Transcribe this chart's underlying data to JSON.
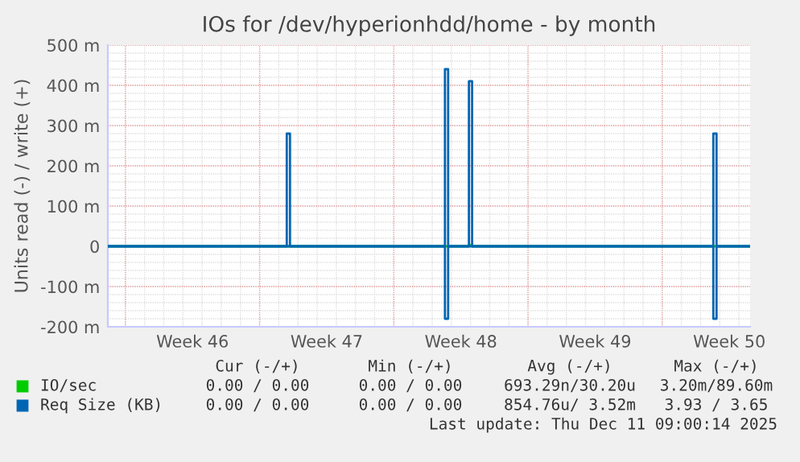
{
  "chart_data": {
    "type": "line",
    "title": "IOs for /dev/hyperionhdd/home - by month",
    "ylabel": "Units read (-) / write (+)",
    "xlim": [
      "2025-11-09T02:00",
      "2025-12-12T14:00"
    ],
    "xticks": [
      {
        "value": "2025-11-10T00:00",
        "label": null
      },
      {
        "value": "2025-11-13T12:00",
        "label": "Week 46"
      },
      {
        "value": "2025-11-17T00:00",
        "label": null
      },
      {
        "value": "2025-11-20T12:00",
        "label": "Week 47"
      },
      {
        "value": "2025-11-24T00:00",
        "label": null
      },
      {
        "value": "2025-11-27T12:00",
        "label": "Week 48"
      },
      {
        "value": "2025-12-01T00:00",
        "label": null
      },
      {
        "value": "2025-12-04T12:00",
        "label": "Week 49"
      },
      {
        "value": "2025-12-08T00:00",
        "label": null
      },
      {
        "value": "2025-12-11T12:00",
        "label": "Week 50"
      }
    ],
    "ylim": [
      -200,
      500
    ],
    "yticks": [
      {
        "value": -200,
        "label": "-200 m"
      },
      {
        "value": -100,
        "label": "-100 m"
      },
      0,
      {
        "value": 100,
        "label": "100 m"
      },
      {
        "value": 200,
        "label": "200 m"
      },
      {
        "value": 300,
        "label": "300 m"
      },
      {
        "value": 400,
        "label": "400 m"
      },
      {
        "value": 500,
        "label": "500 m"
      }
    ],
    "grid": true,
    "legend": "bottom left",
    "line_style": "solid",
    "marker": "none",
    "series": [
      {
        "name": "IO/sec",
        "color": "#00cc00",
        "x": [
          "2025-11-09T02:00",
          "2025-11-27T22:00",
          "2025-11-28T00:00",
          "2025-11-28T02:00",
          "2025-12-12T14:00"
        ],
        "values": [
          0,
          0,
          3,
          0,
          0
        ]
      },
      {
        "name": "Req Size (KB)",
        "color": "#0066b3",
        "x": [
          "2025-11-09T02:00",
          "2025-11-18T10:00",
          "2025-11-18T10:00",
          "2025-11-18T14:00",
          "2025-11-18T14:00",
          "2025-11-26T16:00",
          "2025-11-26T16:00",
          "2025-11-26T20:00",
          "2025-11-26T20:00",
          "2025-11-27T22:00",
          "2025-11-27T22:00",
          "2025-11-28T02:00",
          "2025-11-28T02:00",
          "2025-12-10T16:00",
          "2025-12-10T16:00",
          "2025-12-10T20:00",
          "2025-12-10T20:00",
          "2025-12-12T14:00"
        ],
        "values": [
          0,
          0,
          280,
          280,
          0,
          0,
          440,
          440,
          0,
          0,
          410,
          410,
          0,
          0,
          280,
          280,
          0,
          0
        ]
      },
      {
        "color": "#0066b3",
        "x": [
          "2025-11-09T02:00",
          "2025-11-26T16:00",
          "2025-11-26T16:00",
          "2025-11-26T20:00",
          "2025-11-26T20:00",
          "2025-12-10T16:00",
          "2025-12-10T16:00",
          "2025-12-10T20:00",
          "2025-12-10T20:00",
          "2025-12-12T14:00"
        ],
        "values": [
          0,
          0,
          -180,
          -180,
          0,
          0,
          -180,
          -180,
          0,
          0
        ]
      }
    ],
    "annotations": [
      "Cur (-/+)",
      "Min (-/+)",
      "Avg (-/+)",
      "Max (-/+)",
      "0.00 / 0.00",
      "0.00 / 0.00",
      "693.29n/30.20u",
      "3.20m/89.60m",
      "0.00 / 0.00",
      "0.00 / 0.00",
      "854.76u/ 3.52m",
      "3.93 / 3.65",
      "Last update: Thu Dec 11 09:00:14 2025"
    ]
  }
}
